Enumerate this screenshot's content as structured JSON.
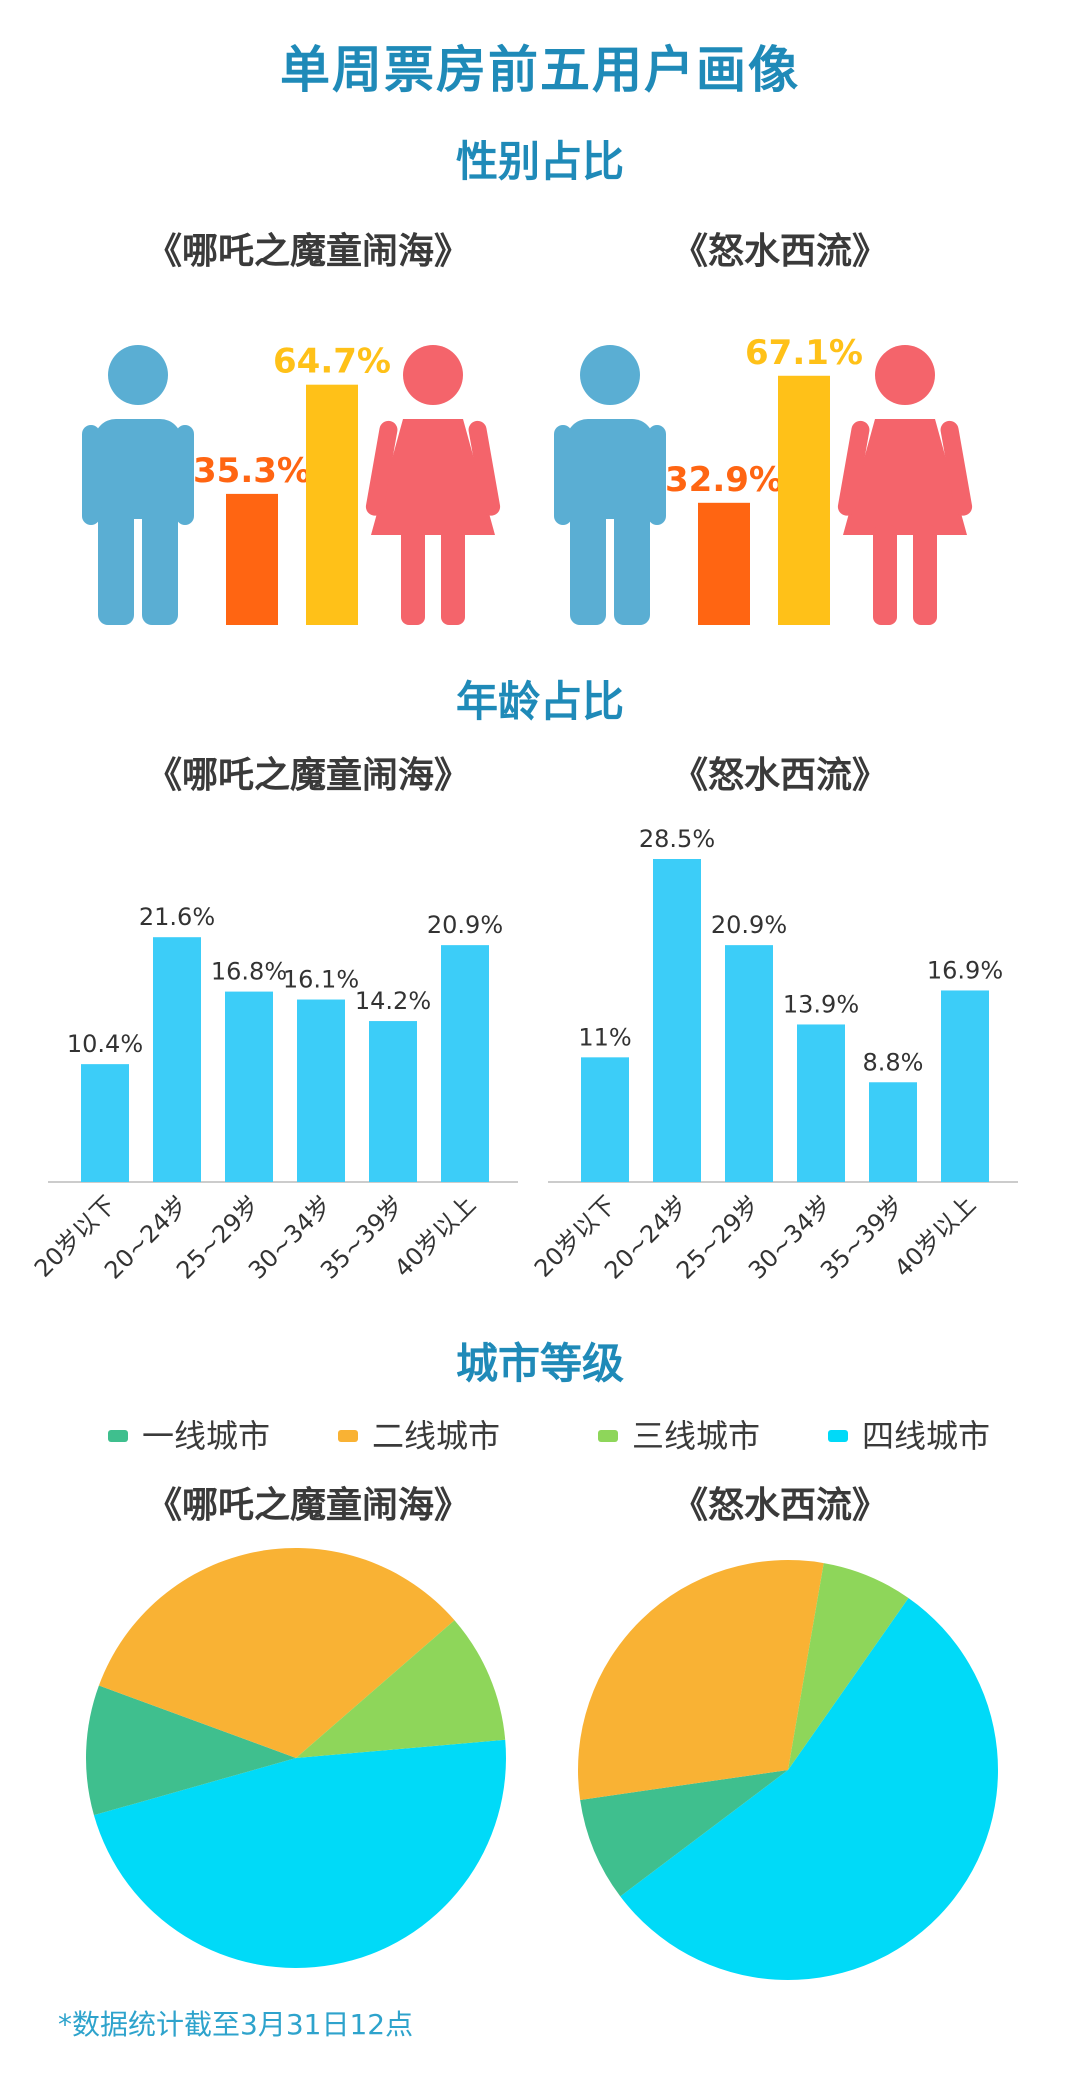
{
  "page": {
    "title": "单周票房前五用户画像",
    "note": "*数据统计截至3月31日12点"
  },
  "sections": {
    "gender": "性别占比",
    "age": "年龄占比",
    "city": "城市等级"
  },
  "movies": [
    "《哪吒之魔童闹海》",
    "《怒水西流》"
  ],
  "colors": {
    "title": "#1f8ab8",
    "male_icon": "#5aaed3",
    "female_icon": "#f4646b",
    "male_bar": "#ff6512",
    "female_bar": "#ffc118",
    "age_bar": "#3ccdf8",
    "tier1": "#3fbf8e",
    "tier2": "#f9b234",
    "tier3": "#8ed65a",
    "tier4": "#00daf8"
  },
  "legend": [
    "一线城市",
    "二线城市",
    "三线城市",
    "四线城市"
  ],
  "chart_data": [
    {
      "type": "bar",
      "title": "《哪吒之魔童闹海》",
      "categories": [
        "男",
        "女"
      ],
      "values": [
        35.3,
        64.7
      ],
      "labels": [
        "35.3%",
        "64.7%"
      ],
      "unit": "%",
      "icons": [
        "male-icon",
        "female-icon"
      ]
    },
    {
      "type": "bar",
      "title": "《怒水西流》",
      "categories": [
        "男",
        "女"
      ],
      "values": [
        32.9,
        67.1
      ],
      "labels": [
        "32.9%",
        "67.1%"
      ],
      "unit": "%",
      "icons": [
        "male-icon",
        "female-icon"
      ]
    },
    {
      "type": "bar",
      "title": "《哪吒之魔童闹海》",
      "categories": [
        "20岁以下",
        "20~24岁",
        "25~29岁",
        "30~34岁",
        "35~39岁",
        "40岁以上"
      ],
      "values": [
        10.4,
        21.6,
        16.8,
        16.1,
        14.2,
        20.9
      ],
      "labels": [
        "10.4%",
        "21.6%",
        "16.8%",
        "16.1%",
        "14.2%",
        "20.9%"
      ],
      "unit": "%",
      "ylim": [
        0,
        30
      ]
    },
    {
      "type": "bar",
      "title": "《怒水西流》",
      "categories": [
        "20岁以下",
        "20~24岁",
        "25~29岁",
        "30~34岁",
        "35~39岁",
        "40岁以上"
      ],
      "values": [
        11,
        28.5,
        20.9,
        13.9,
        8.8,
        16.9
      ],
      "labels": [
        "11%",
        "28.5%",
        "20.9%",
        "13.9%",
        "8.8%",
        "16.9%"
      ],
      "unit": "%",
      "ylim": [
        0,
        30
      ]
    },
    {
      "type": "pie",
      "title": "《哪吒之魔童闹海》",
      "categories": [
        "一线城市",
        "二线城市",
        "三线城市",
        "四线城市"
      ],
      "values": [
        10,
        33,
        10,
        47
      ],
      "legend_position": "top"
    },
    {
      "type": "pie",
      "title": "《怒水西流》",
      "categories": [
        "一线城市",
        "二线城市",
        "三线城市",
        "四线城市"
      ],
      "values": [
        8,
        30,
        7,
        55
      ],
      "legend_position": "top"
    }
  ]
}
